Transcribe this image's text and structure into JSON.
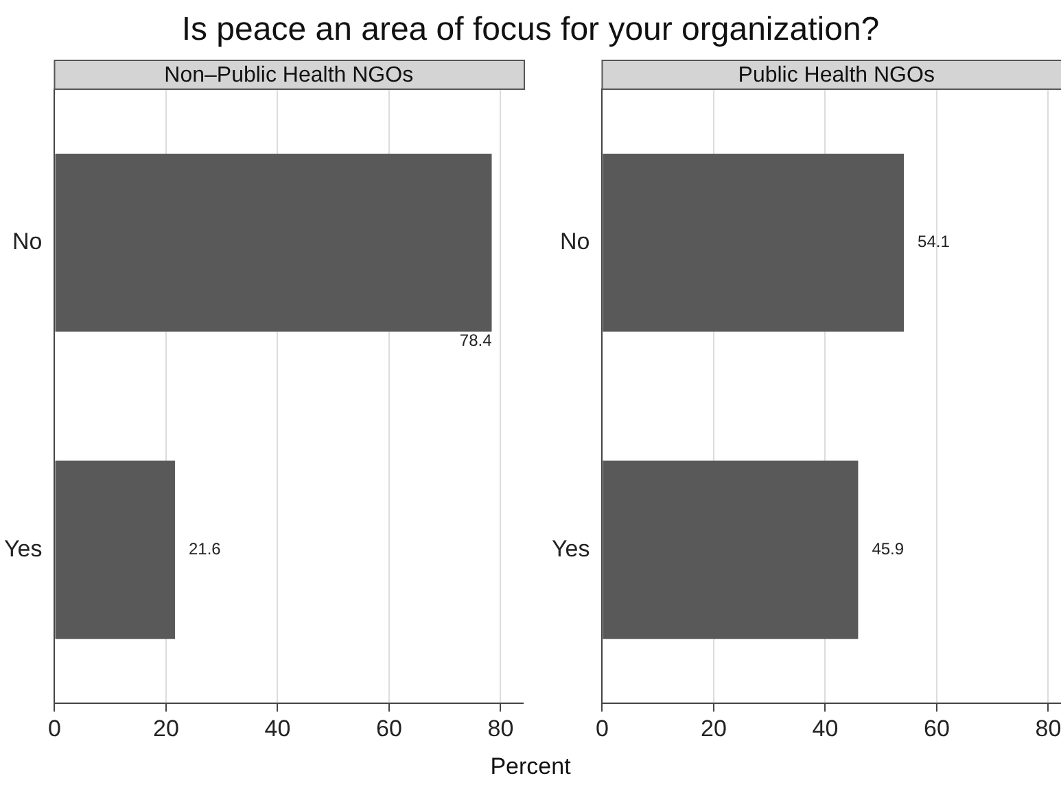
{
  "chart_data": [
    {
      "type": "bar",
      "orientation": "horizontal",
      "title": "Is peace an area of focus for your organization?",
      "subtitle": "Non–Public Health NGOs",
      "xlabel": "Percent",
      "categories": [
        "No",
        "Yes"
      ],
      "values": [
        78.4,
        21.6
      ],
      "color": "#595959",
      "xlim": [
        0,
        84
      ],
      "xticks": [
        0,
        20,
        40,
        60,
        80
      ],
      "grid": "x",
      "data_labels": true
    },
    {
      "type": "bar",
      "orientation": "horizontal",
      "subtitle": "Public Health NGOs",
      "categories": [
        "No",
        "Yes"
      ],
      "values": [
        54.1,
        45.9
      ],
      "color": "#595959",
      "xlim": [
        0,
        84
      ],
      "xticks": [
        0,
        20,
        40,
        60,
        80
      ],
      "grid": "x",
      "data_labels": true
    }
  ]
}
